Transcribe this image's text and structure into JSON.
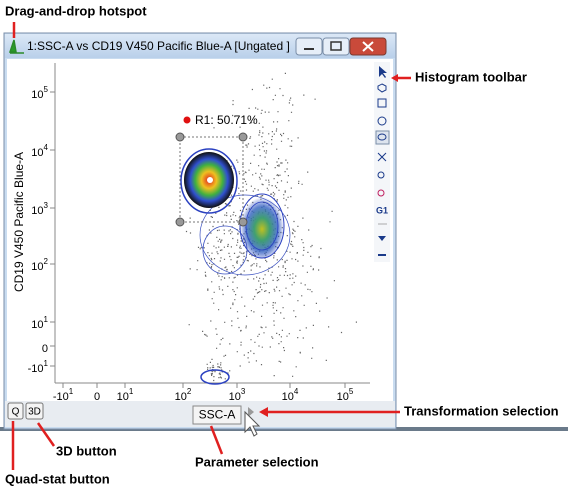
{
  "annotations": {
    "drag_drop": "Drag-and-drop hotspot",
    "histogram_toolbar": "Histogram toolbar",
    "transformation": "Transformation selection",
    "three_d": "3D button",
    "parameter": "Parameter selection",
    "quad_stat": "Quad-stat button"
  },
  "window": {
    "title": "1:SSC-A vs CD19 V450 Pacific Blue-A [Ungated ]"
  },
  "plot": {
    "y_axis_label": "CD19 V450 Pacific Blue-A",
    "gate_label": "R1: 50.71%",
    "y_ticks": [
      {
        "base": "10",
        "exp": "5"
      },
      {
        "base": "10",
        "exp": "4"
      },
      {
        "base": "10",
        "exp": "3"
      },
      {
        "base": "10",
        "exp": "2"
      },
      {
        "base": "10",
        "exp": "1"
      },
      {
        "base": "0"
      },
      {
        "base": "-10",
        "exp": "1"
      }
    ],
    "x_ticks": [
      {
        "base": "-10",
        "exp": "1"
      },
      {
        "base": "0"
      },
      {
        "base": "10",
        "exp": "1"
      },
      {
        "base": "10",
        "exp": "2"
      },
      {
        "base": "10",
        "exp": "3"
      },
      {
        "base": "10",
        "exp": "4"
      },
      {
        "base": "10",
        "exp": "5"
      }
    ]
  },
  "buttons": {
    "quad": "Q",
    "three_d": "3D",
    "parameter": "SSC-A"
  }
}
